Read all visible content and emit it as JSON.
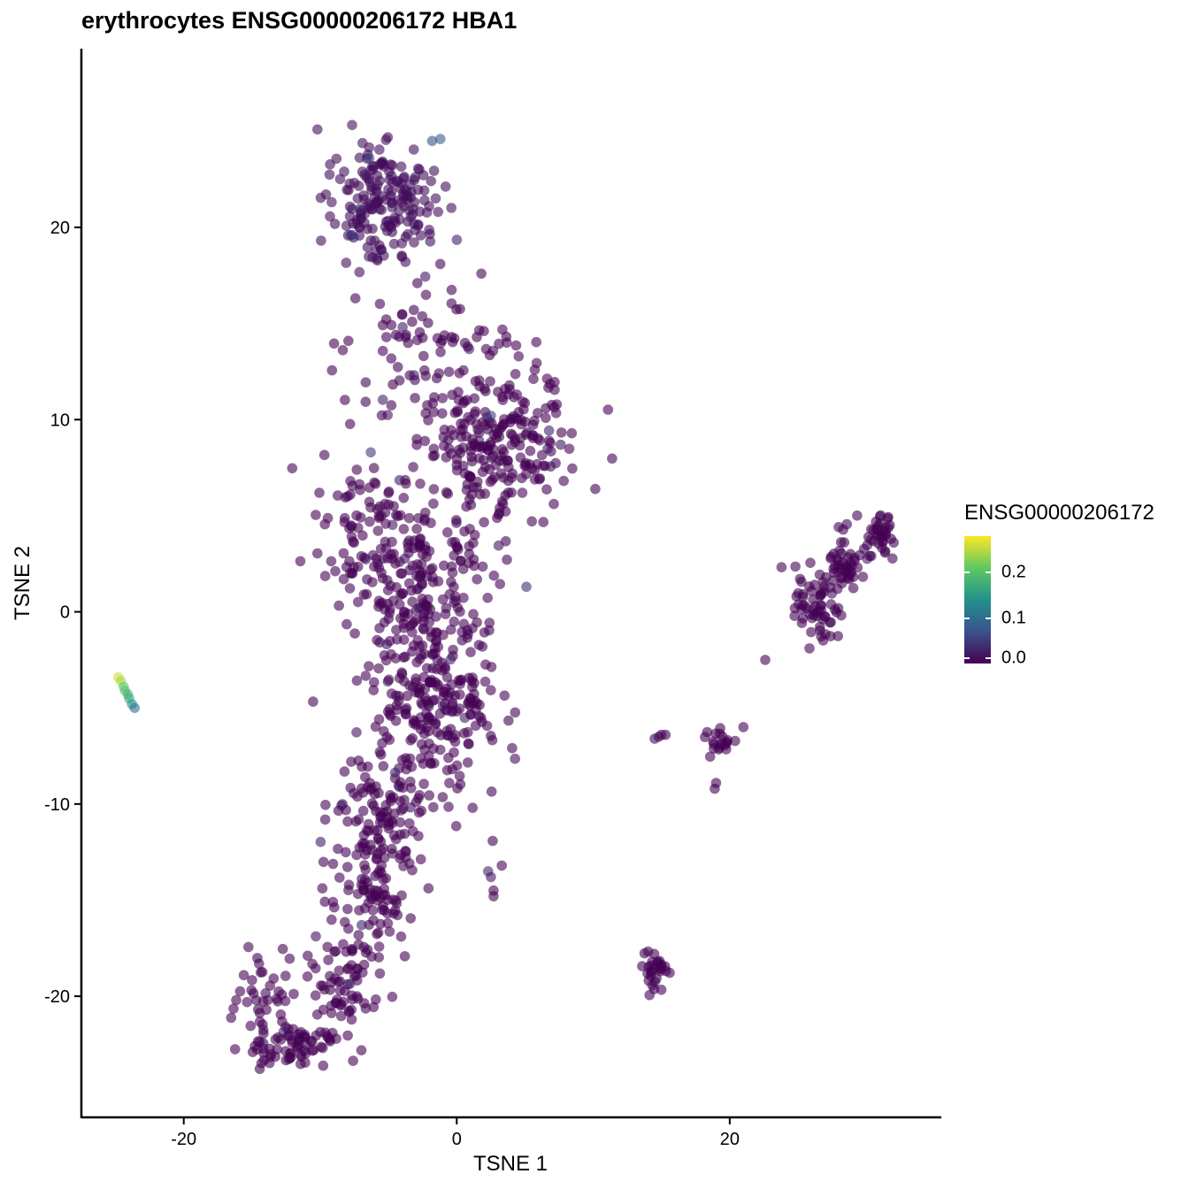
{
  "chart_data": {
    "type": "scatter",
    "title": "erythrocytes ENSG00000206172 HBA1",
    "xlabel": "TSNE 1",
    "ylabel": "TSNE 2",
    "xlim": [
      -27.5,
      35.5
    ],
    "ylim": [
      -26.3,
      29.3
    ],
    "x_ticks": [
      -20,
      0,
      20
    ],
    "x_tick_labels": [
      "-20",
      "0",
      "20"
    ],
    "y_ticks": [
      -20,
      -10,
      0,
      10,
      20
    ],
    "y_tick_labels": [
      "-20",
      "-10",
      "0",
      "10",
      "20"
    ],
    "grid": false,
    "legend": {
      "title": "ENSG00000206172",
      "placement": "right",
      "type": "continuous colorbar",
      "range": [
        0.0,
        0.28
      ],
      "ticks": [
        0.0,
        0.1,
        0.2
      ],
      "tick_labels": [
        "0.0",
        "0.1",
        "0.2"
      ],
      "colors": [
        "#440154",
        "#3b528b",
        "#21918c",
        "#5ec962",
        "#fde725"
      ]
    },
    "point_alpha": 0.6,
    "series": [
      {
        "clusters": [
          {
            "cx": -5.5,
            "cy": 21.5,
            "sx": 2.3,
            "sy": 2.2,
            "n": 190,
            "v": 0.01
          },
          {
            "cx": -3.5,
            "cy": 14.0,
            "sx": 3.2,
            "sy": 2.2,
            "n": 70,
            "v": 0.0
          },
          {
            "cx": 3.0,
            "cy": 8.8,
            "sx": 3.2,
            "sy": 2.7,
            "n": 250,
            "v": 0.0
          },
          {
            "cx": -6.5,
            "cy": 5.0,
            "sx": 2.5,
            "sy": 2.5,
            "n": 60,
            "v": 0.0
          },
          {
            "cx": -3.0,
            "cy": 1.0,
            "sx": 3.5,
            "sy": 3.0,
            "n": 240,
            "v": 0.0
          },
          {
            "cx": -1.5,
            "cy": -5.0,
            "sx": 3.0,
            "sy": 2.6,
            "n": 200,
            "v": 0.0
          },
          {
            "cx": -5.5,
            "cy": -10.5,
            "sx": 2.3,
            "sy": 2.0,
            "n": 110,
            "v": 0.0
          },
          {
            "cx": -6.5,
            "cy": -15.0,
            "sx": 1.8,
            "sy": 2.0,
            "n": 90,
            "v": 0.0
          },
          {
            "cx": -8.5,
            "cy": -19.5,
            "sx": 1.8,
            "sy": 1.6,
            "n": 70,
            "v": 0.0
          },
          {
            "cx": -14.0,
            "cy": -19.8,
            "sx": 1.6,
            "sy": 1.5,
            "n": 45,
            "v": 0.0
          },
          {
            "cx": -12.0,
            "cy": -22.5,
            "sx": 2.0,
            "sy": 0.8,
            "n": 60,
            "v": 0.0
          },
          {
            "cx": 26.5,
            "cy": 0.3,
            "sx": 1.0,
            "sy": 1.2,
            "n": 60,
            "v": 0.0
          },
          {
            "cx": 28.5,
            "cy": 2.5,
            "sx": 1.2,
            "sy": 1.0,
            "n": 50,
            "v": 0.0
          },
          {
            "cx": 31.0,
            "cy": 4.0,
            "sx": 1.0,
            "sy": 0.8,
            "n": 40,
            "v": 0.0
          },
          {
            "cx": 19.2,
            "cy": -6.8,
            "sx": 0.6,
            "sy": 0.5,
            "n": 20,
            "v": 0.0
          },
          {
            "cx": 14.5,
            "cy": -18.6,
            "sx": 0.6,
            "sy": 0.6,
            "n": 30,
            "v": 0.0
          }
        ],
        "points": [
          {
            "x": -24.8,
            "y": -3.4,
            "v": 0.26
          },
          {
            "x": -24.6,
            "y": -3.6,
            "v": 0.24
          },
          {
            "x": -24.4,
            "y": -3.9,
            "v": 0.21
          },
          {
            "x": -24.3,
            "y": -4.1,
            "v": 0.2
          },
          {
            "x": -24.1,
            "y": -4.3,
            "v": 0.18
          },
          {
            "x": -24.0,
            "y": -4.5,
            "v": 0.17
          },
          {
            "x": -23.8,
            "y": -4.8,
            "v": 0.14
          },
          {
            "x": -23.6,
            "y": -5.0,
            "v": 0.11
          },
          {
            "x": 2.3,
            "y": -13.5,
            "v": 0.03
          },
          {
            "x": 2.5,
            "y": -13.8,
            "v": 0.02
          },
          {
            "x": 3.3,
            "y": -13.2,
            "v": 0.0
          },
          {
            "x": 2.7,
            "y": -14.8,
            "v": 0.0
          },
          {
            "x": 2.7,
            "y": -14.5,
            "v": 0.0
          },
          {
            "x": 14.5,
            "y": -6.6,
            "v": 0.01
          },
          {
            "x": 15.0,
            "y": -6.4,
            "v": 0.0
          },
          {
            "x": 15.3,
            "y": -6.4,
            "v": 0.0
          },
          {
            "x": 14.8,
            "y": -6.5,
            "v": 0.0
          },
          {
            "x": 22.6,
            "y": -2.5,
            "v": 0.0
          },
          {
            "x": 19.0,
            "y": -8.9,
            "v": 0.0
          },
          {
            "x": 18.9,
            "y": -9.2,
            "v": 0.0
          },
          {
            "x": 21.0,
            "y": -6.0,
            "v": 0.0
          },
          {
            "x": -6.3,
            "y": 8.3,
            "v": 0.05
          },
          {
            "x": 5.1,
            "y": 1.3,
            "v": 0.04
          },
          {
            "x": -1.2,
            "y": 24.6,
            "v": 0.08
          },
          {
            "x": -1.8,
            "y": 24.5,
            "v": 0.07
          },
          {
            "x": -7.7,
            "y": 19.6,
            "v": 0.06
          },
          {
            "x": -6.4,
            "y": 23.6,
            "v": 0.06
          },
          {
            "x": 2.5,
            "y": 10.2,
            "v": 0.05
          },
          {
            "x": 0.8,
            "y": 13.8,
            "v": 0.0
          }
        ]
      }
    ]
  }
}
